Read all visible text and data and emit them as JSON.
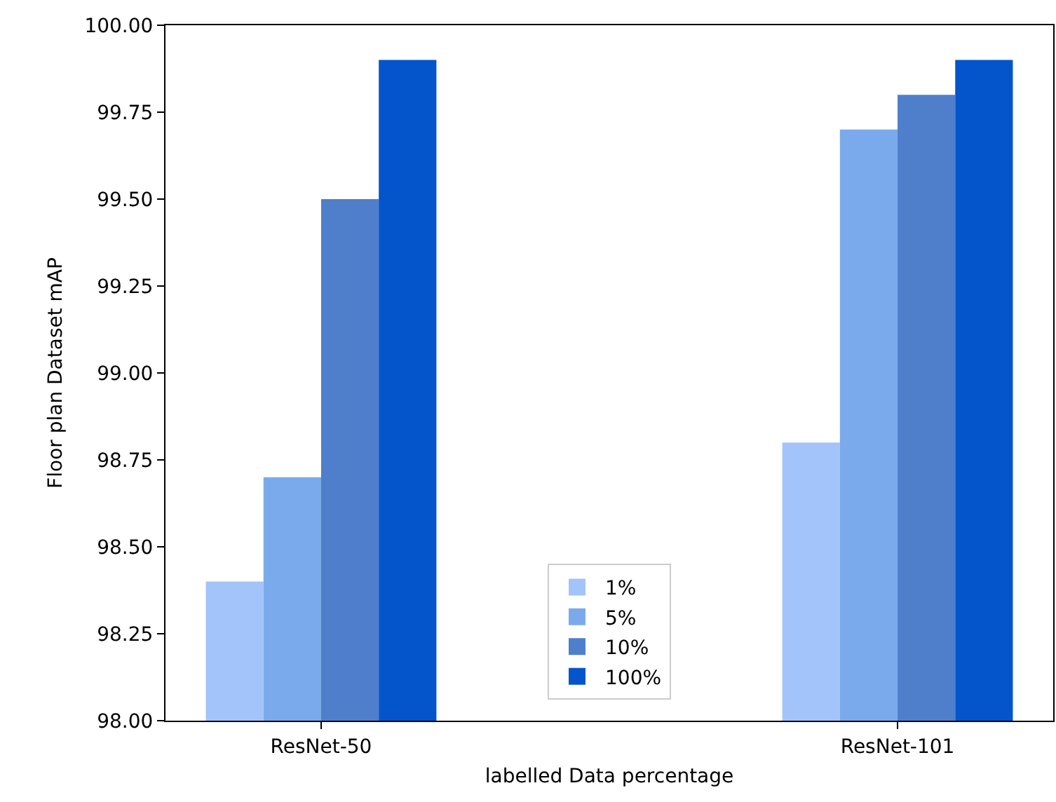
{
  "chart_data": {
    "type": "bar",
    "xlabel": "labelled Data percentage",
    "ylabel": "Floor plan Dataset mAP",
    "categories": [
      "ResNet-50",
      "ResNet-101"
    ],
    "series": [
      {
        "name": "1%",
        "color": "#a3c4fa",
        "values": [
          98.4,
          98.8
        ]
      },
      {
        "name": "5%",
        "color": "#7aaaec",
        "values": [
          98.7,
          99.7
        ]
      },
      {
        "name": "10%",
        "color": "#4f7fcb",
        "values": [
          99.5,
          99.8
        ]
      },
      {
        "name": "100%",
        "color": "#0455cc",
        "values": [
          99.9,
          99.9
        ]
      }
    ],
    "ylim": [
      98,
      100
    ],
    "yticks": [
      {
        "value": 98,
        "label": "98.00"
      },
      {
        "value": 98.25,
        "label": "98.25"
      },
      {
        "value": 98.5,
        "label": "98.50"
      },
      {
        "value": 98.75,
        "label": "98.75"
      },
      {
        "value": 99,
        "label": "99.00"
      },
      {
        "value": 99.25,
        "label": "99.25"
      },
      {
        "value": 99.5,
        "label": "99.50"
      },
      {
        "value": 99.75,
        "label": "99.75"
      },
      {
        "value": 100,
        "label": "100.00"
      }
    ],
    "grid": false,
    "legend": "bottom"
  }
}
